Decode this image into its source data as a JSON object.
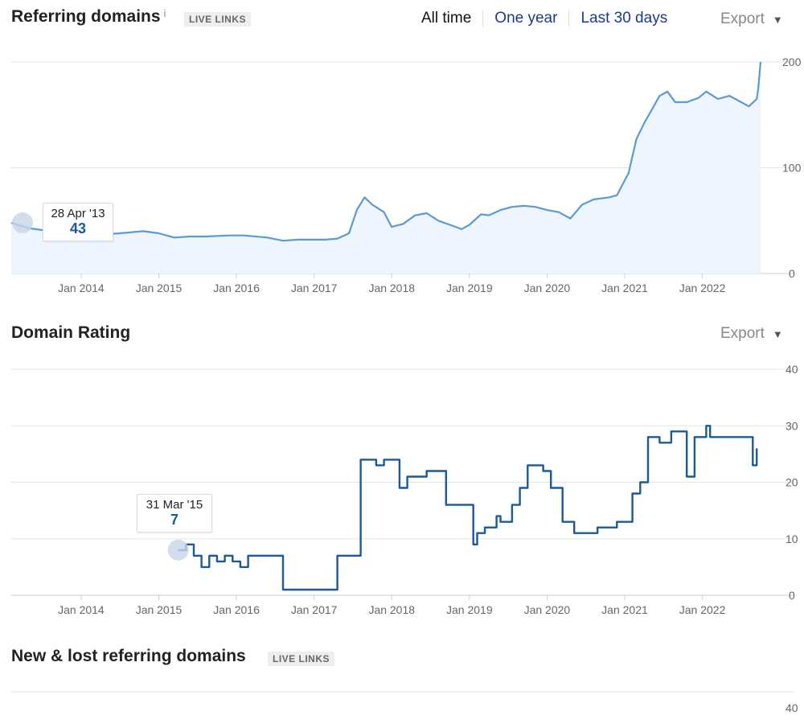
{
  "referring": {
    "title": "Referring domains",
    "info": "i",
    "badge": "LIVE LINKS",
    "tabs": [
      "All time",
      "One year",
      "Last 30 days"
    ],
    "export": "Export",
    "tooltip": {
      "date": "28 Apr '13",
      "value": "43"
    }
  },
  "rating": {
    "title": "Domain Rating",
    "export": "Export",
    "tooltip": {
      "date": "31 Mar '15",
      "value": "7"
    }
  },
  "newlost": {
    "title": "New & lost referring domains",
    "badge": "LIVE LINKS",
    "yticks": [
      40
    ]
  },
  "colors": {
    "rd_line": "#5b9bd5",
    "rd_fill": "#eef5fd",
    "dr_line": "#1a5a95",
    "marker": "#c8d6e8"
  },
  "chart_data": [
    {
      "type": "area",
      "title": "Referring domains",
      "xlabels": [
        "Jan 2014",
        "Jan 2015",
        "Jan 2016",
        "Jan 2017",
        "Jan 2018",
        "Jan 2019",
        "Jan 2020",
        "Jan 2021",
        "Jan 2022"
      ],
      "xlim": [
        2013.1,
        2022.75
      ],
      "ylim": [
        0,
        200
      ],
      "yticks": [
        0,
        100,
        200
      ],
      "grid": true,
      "series": [
        {
          "x": [
            2013.1,
            2013.32,
            2013.6,
            2013.8,
            2014.0,
            2014.3,
            2014.5,
            2014.8,
            2015.0,
            2015.2,
            2015.4,
            2015.6,
            2015.9,
            2016.1,
            2016.4,
            2016.6,
            2016.8,
            2017.0,
            2017.15,
            2017.3,
            2017.45,
            2017.55,
            2017.65,
            2017.75,
            2017.9,
            2018.0,
            2018.15,
            2018.3,
            2018.45,
            2018.6,
            2018.75,
            2018.9,
            2019.0,
            2019.15,
            2019.25,
            2019.4,
            2019.55,
            2019.7,
            2019.85,
            2020.0,
            2020.15,
            2020.3,
            2020.45,
            2020.6,
            2020.8,
            2020.9,
            2021.05,
            2021.15,
            2021.25,
            2021.35,
            2021.45,
            2021.55,
            2021.65,
            2021.8,
            2021.95,
            2022.05,
            2022.2,
            2022.35,
            2022.5,
            2022.6,
            2022.7,
            2022.72,
            2022.75
          ],
          "y": [
            48,
            43,
            40,
            38,
            37,
            37,
            38,
            40,
            38,
            34,
            35,
            35,
            36,
            36,
            34,
            31,
            32,
            32,
            32,
            33,
            38,
            60,
            72,
            65,
            58,
            44,
            47,
            55,
            57,
            50,
            46,
            42,
            46,
            56,
            55,
            60,
            63,
            64,
            63,
            60,
            58,
            52,
            65,
            70,
            72,
            74,
            95,
            127,
            142,
            155,
            168,
            172,
            162,
            162,
            166,
            172,
            165,
            168,
            162,
            158,
            165,
            175,
            200
          ]
        }
      ]
    },
    {
      "type": "line",
      "title": "Domain Rating",
      "xlabels": [
        "Jan 2014",
        "Jan 2015",
        "Jan 2016",
        "Jan 2017",
        "Jan 2018",
        "Jan 2019",
        "Jan 2020",
        "Jan 2021",
        "Jan 2022"
      ],
      "xlim": [
        2013.1,
        2022.75
      ],
      "ylim": [
        0,
        40
      ],
      "yticks": [
        0,
        10,
        20,
        30,
        40
      ],
      "grid": true,
      "step": true,
      "series": [
        {
          "x": [
            2015.25,
            2015.35,
            2015.45,
            2015.55,
            2015.65,
            2015.75,
            2015.85,
            2015.95,
            2016.05,
            2016.15,
            2016.3,
            2016.5,
            2016.6,
            2016.9,
            2017.15,
            2017.3,
            2017.6,
            2017.8,
            2017.9,
            2018.1,
            2018.2,
            2018.45,
            2018.7,
            2019.0,
            2019.05,
            2019.1,
            2019.2,
            2019.35,
            2019.4,
            2019.5,
            2019.55,
            2019.65,
            2019.75,
            2019.95,
            2020.05,
            2020.2,
            2020.35,
            2020.55,
            2020.65,
            2020.8,
            2020.9,
            2021.0,
            2021.1,
            2021.2,
            2021.3,
            2021.45,
            2021.6,
            2021.75,
            2021.8,
            2021.9,
            2022.0,
            2022.05,
            2022.1,
            2022.2,
            2022.3,
            2022.6,
            2022.65,
            2022.7
          ],
          "y": [
            8,
            9,
            7,
            5,
            7,
            6,
            7,
            6,
            5,
            7,
            7,
            7,
            1,
            1,
            1,
            7,
            24,
            23,
            24,
            19,
            21,
            22,
            16,
            16,
            9,
            11,
            12,
            14,
            13,
            13,
            16,
            19,
            23,
            22,
            19,
            13,
            11,
            11,
            12,
            12,
            13,
            13,
            18,
            20,
            28,
            27,
            29,
            29,
            21,
            28,
            28,
            30,
            28,
            28,
            28,
            28,
            23,
            26
          ]
        }
      ]
    }
  ]
}
